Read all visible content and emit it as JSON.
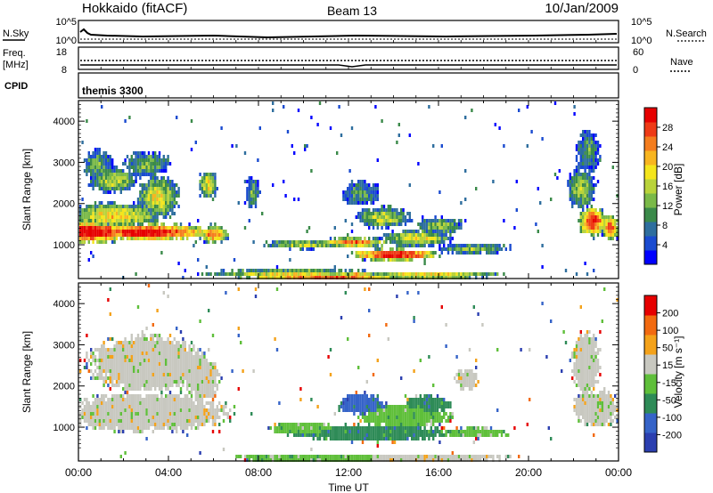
{
  "header": {
    "station": "Hokkaido (fitACF)",
    "beam": "Beam 13",
    "date": "10/Jan/2009"
  },
  "top_panels": {
    "nsky_label": "N.Sky",
    "nsky_ticks": [
      "10^5",
      "10^0"
    ],
    "nsearch_label": "N.Search",
    "nsearch_ticks": [
      "10^5",
      "10^0"
    ],
    "freq_label": "Freq.",
    "freq_unit": "[MHz]",
    "freq_ticks": [
      "18",
      "8"
    ],
    "nave_label": "Nave",
    "nave_ticks": [
      "60",
      "0"
    ],
    "cpid_label": "CPID",
    "cpid_value": "themis 3300"
  },
  "chart_data": [
    {
      "type": "heatmap",
      "name": "power",
      "ylabel": "Slant Range [km]",
      "yticks": [
        "4000",
        "3000",
        "2000",
        "1000"
      ],
      "ylim": [
        180,
        4500
      ],
      "colorbar_label": "Power [dB]",
      "colorbar_ticks": [
        "28",
        "24",
        "20",
        "16",
        "12",
        "8",
        "4"
      ],
      "colors": [
        "#0000ff",
        "#1a4bd0",
        "#2e6e9e",
        "#3b8a4a",
        "#7ab948",
        "#b9d33a",
        "#f4e51c",
        "#f8b520",
        "#f47d1e",
        "#ee3a16",
        "#e60000"
      ],
      "blobs": [
        {
          "t": 0.5,
          "r": 1350,
          "dt": 1.8,
          "dr": 260,
          "v": 0.95
        },
        {
          "t": 3.0,
          "r": 1350,
          "dt": 3.0,
          "dr": 200,
          "v": 0.9
        },
        {
          "t": 6.0,
          "r": 1300,
          "dt": 0.6,
          "dr": 220,
          "v": 0.75
        },
        {
          "t": 1.5,
          "r": 1750,
          "dt": 2.2,
          "dr": 300,
          "v": 0.55
        },
        {
          "t": 3.5,
          "r": 2200,
          "dt": 0.9,
          "dr": 500,
          "v": 0.5
        },
        {
          "t": 1.5,
          "r": 2600,
          "dt": 1.0,
          "dr": 300,
          "v": 0.45
        },
        {
          "t": 3.0,
          "r": 3000,
          "dt": 1.0,
          "dr": 300,
          "v": 0.35
        },
        {
          "t": 0.8,
          "r": 3000,
          "dt": 0.6,
          "dr": 350,
          "v": 0.35
        },
        {
          "t": 5.7,
          "r": 2500,
          "dt": 0.4,
          "dr": 350,
          "v": 0.5
        },
        {
          "t": 11.0,
          "r": 280,
          "dt": 4.0,
          "dr": 80,
          "v": 0.9
        },
        {
          "t": 9.5,
          "r": 350,
          "dt": 4.0,
          "dr": 90,
          "v": 0.55
        },
        {
          "t": 15.5,
          "r": 300,
          "dt": 3.5,
          "dr": 80,
          "v": 0.6
        },
        {
          "t": 14.0,
          "r": 800,
          "dt": 2.0,
          "dr": 140,
          "v": 0.9
        },
        {
          "t": 12.2,
          "r": 1100,
          "dt": 1.5,
          "dr": 120,
          "v": 0.7
        },
        {
          "t": 10.0,
          "r": 1050,
          "dt": 1.8,
          "dr": 110,
          "v": 0.45
        },
        {
          "t": 15.0,
          "r": 1200,
          "dt": 1.5,
          "dr": 200,
          "v": 0.5
        },
        {
          "t": 13.5,
          "r": 1700,
          "dt": 1.2,
          "dr": 250,
          "v": 0.45
        },
        {
          "t": 16.0,
          "r": 1500,
          "dt": 1.0,
          "dr": 200,
          "v": 0.4
        },
        {
          "t": 17.5,
          "r": 950,
          "dt": 1.5,
          "dr": 120,
          "v": 0.4
        },
        {
          "t": 22.8,
          "r": 1600,
          "dt": 0.6,
          "dr": 350,
          "v": 0.85
        },
        {
          "t": 23.6,
          "r": 1450,
          "dt": 0.4,
          "dr": 300,
          "v": 0.75
        },
        {
          "t": 22.3,
          "r": 2400,
          "dt": 0.6,
          "dr": 500,
          "v": 0.4
        },
        {
          "t": 22.6,
          "r": 3300,
          "dt": 0.5,
          "dr": 500,
          "v": 0.3
        },
        {
          "t": 12.5,
          "r": 2300,
          "dt": 0.8,
          "dr": 300,
          "v": 0.3
        },
        {
          "t": 7.7,
          "r": 2300,
          "dt": 0.3,
          "dr": 400,
          "v": 0.3
        }
      ]
    },
    {
      "type": "heatmap",
      "name": "velocity",
      "ylabel": "Slant Range [km]",
      "yticks": [
        "4000",
        "3000",
        "2000",
        "1000"
      ],
      "ylim": [
        180,
        4500
      ],
      "xticks": [
        "00:00",
        "04:00",
        "08:00",
        "12:00",
        "16:00",
        "20:00",
        "00:00"
      ],
      "xlim": [
        0,
        24
      ],
      "xlabel": "Time UT",
      "colorbar_label": "Velocity [m s⁻¹]",
      "colorbar_ticks": [
        "200",
        "100",
        "50",
        "15",
        "-15",
        "-50",
        "-100",
        "-200"
      ],
      "colors": [
        "#2b3fb0",
        "#3563c8",
        "#2e8b57",
        "#5fbf3a",
        "#c8c8c0",
        "#f4a21a",
        "#f26a10",
        "#e60000"
      ],
      "blobs": [
        {
          "t": 3.0,
          "r": 1400,
          "dt": 3.5,
          "dr": 450,
          "v": 4
        },
        {
          "t": 3.0,
          "r": 2600,
          "dt": 2.5,
          "dr": 650,
          "v": 4
        },
        {
          "t": 5.5,
          "r": 2200,
          "dt": 0.7,
          "dr": 500,
          "v": 4
        },
        {
          "t": 11.0,
          "r": 300,
          "dt": 4.0,
          "dr": 90,
          "v": 3
        },
        {
          "t": 15.0,
          "r": 300,
          "dt": 4.0,
          "dr": 90,
          "v": 4
        },
        {
          "t": 13.0,
          "r": 900,
          "dt": 3.5,
          "dr": 200,
          "v": 2
        },
        {
          "t": 14.5,
          "r": 1300,
          "dt": 2.0,
          "dr": 250,
          "v": 3
        },
        {
          "t": 12.5,
          "r": 1600,
          "dt": 1.0,
          "dr": 250,
          "v": 1
        },
        {
          "t": 15.5,
          "r": 1600,
          "dt": 1.0,
          "dr": 200,
          "v": 2
        },
        {
          "t": 10.0,
          "r": 1000,
          "dt": 1.5,
          "dr": 150,
          "v": 3
        },
        {
          "t": 17.5,
          "r": 900,
          "dt": 1.5,
          "dr": 120,
          "v": 3
        },
        {
          "t": 23.0,
          "r": 1500,
          "dt": 1.0,
          "dr": 400,
          "v": 4
        },
        {
          "t": 22.5,
          "r": 2600,
          "dt": 0.6,
          "dr": 700,
          "v": 4
        },
        {
          "t": 17.2,
          "r": 2200,
          "dt": 0.5,
          "dr": 250,
          "v": 4
        }
      ]
    }
  ]
}
